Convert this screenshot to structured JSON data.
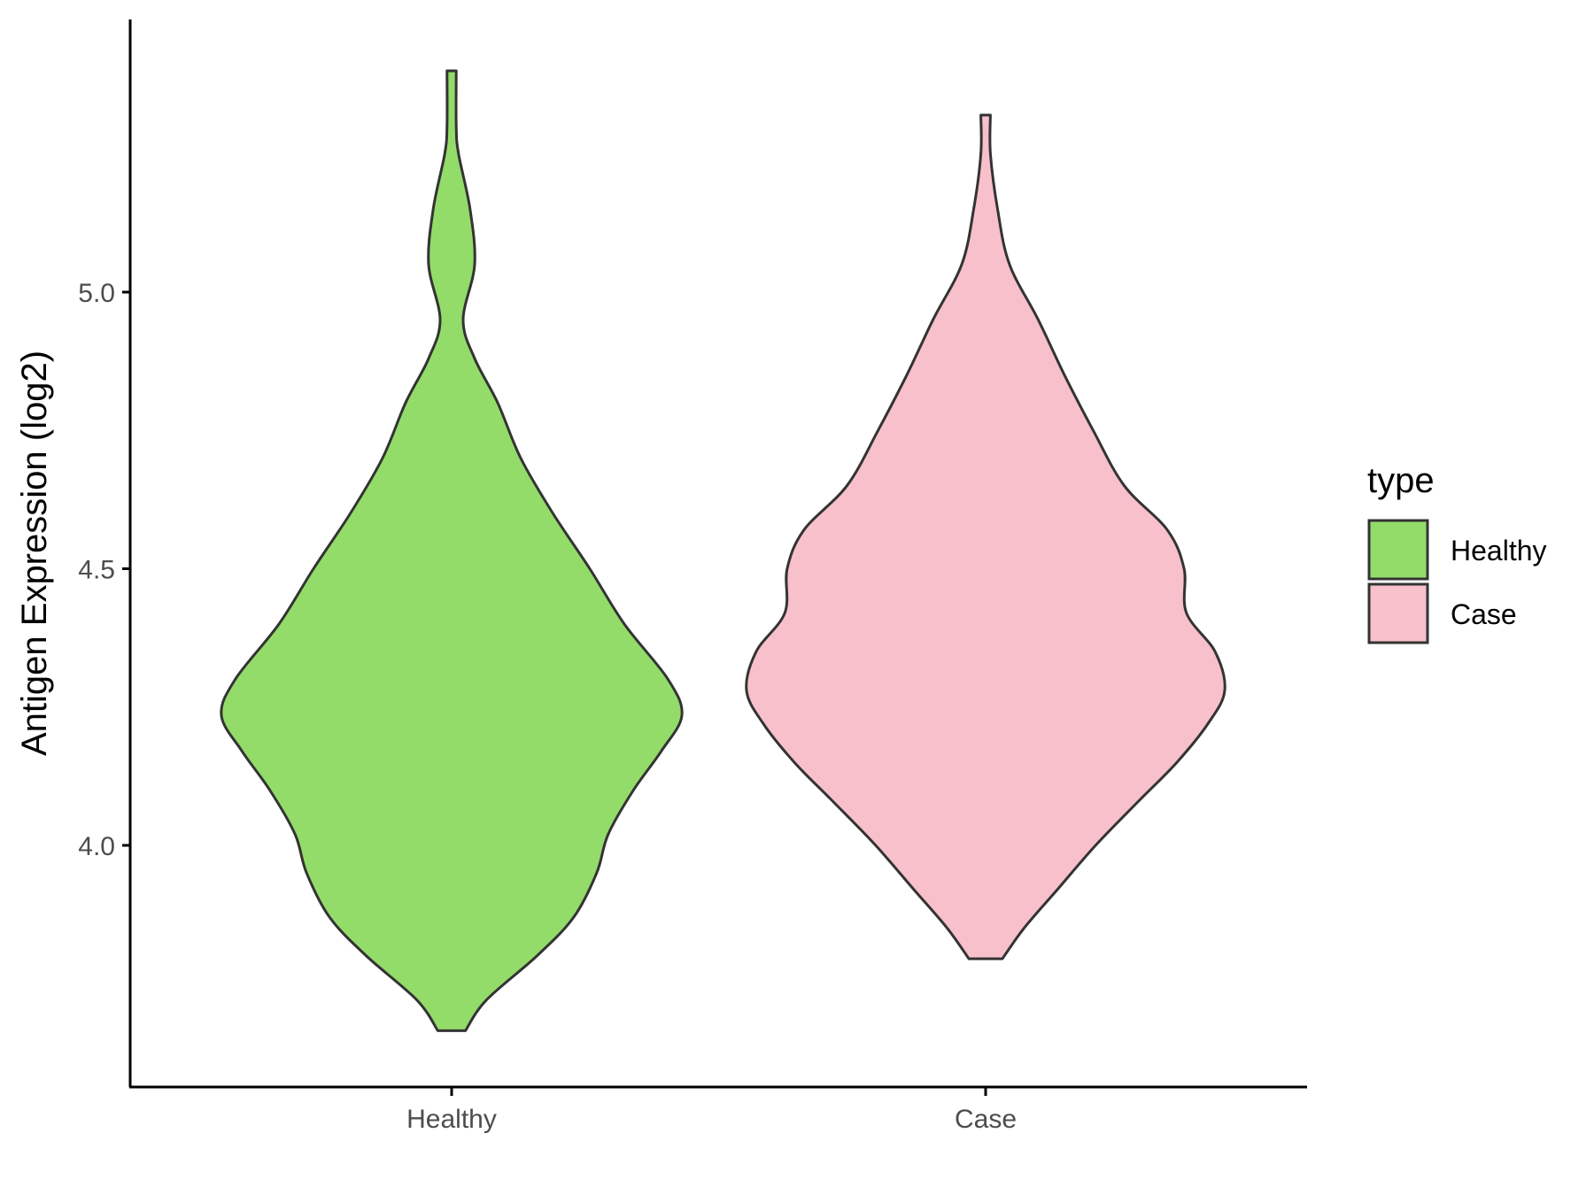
{
  "chart_data": {
    "type": "violin",
    "title": "",
    "xlabel": "",
    "ylabel": "Antigen Expression (log2)",
    "y_ticks": [
      "4.0",
      "4.5",
      "5.0"
    ],
    "ylim": [
      3.58,
      5.5
    ],
    "grid": false,
    "legend": {
      "title": "type",
      "position": "right",
      "items": [
        {
          "label": "Healthy",
          "color": "#93dc6a"
        },
        {
          "label": "Case",
          "color": "#f7c0cb"
        }
      ]
    },
    "categories": [
      "Healthy",
      "Case"
    ],
    "series": [
      {
        "name": "Healthy",
        "color": "#93dc6a",
        "min": 3.665,
        "max": 5.4,
        "density_profile": [
          [
            3.665,
            0.06
          ],
          [
            3.72,
            0.15
          ],
          [
            3.8,
            0.37
          ],
          [
            3.87,
            0.53
          ],
          [
            3.95,
            0.63
          ],
          [
            4.02,
            0.68
          ],
          [
            4.1,
            0.79
          ],
          [
            4.17,
            0.91
          ],
          [
            4.235,
            1.0
          ],
          [
            4.3,
            0.94
          ],
          [
            4.4,
            0.75
          ],
          [
            4.5,
            0.6
          ],
          [
            4.6,
            0.44
          ],
          [
            4.7,
            0.3
          ],
          [
            4.8,
            0.2
          ],
          [
            4.88,
            0.1
          ],
          [
            4.95,
            0.05
          ],
          [
            5.05,
            0.1
          ],
          [
            5.15,
            0.08
          ],
          [
            5.25,
            0.03
          ],
          [
            5.3,
            0.02
          ],
          [
            5.4,
            0.02
          ]
        ]
      },
      {
        "name": "Case",
        "color": "#f7c0cb",
        "min": 3.795,
        "max": 5.32,
        "density_profile": [
          [
            3.795,
            0.07
          ],
          [
            3.85,
            0.16
          ],
          [
            3.92,
            0.3
          ],
          [
            4.0,
            0.46
          ],
          [
            4.08,
            0.64
          ],
          [
            4.15,
            0.8
          ],
          [
            4.22,
            0.93
          ],
          [
            4.28,
            1.0
          ],
          [
            4.35,
            0.96
          ],
          [
            4.42,
            0.84
          ],
          [
            4.5,
            0.83
          ],
          [
            4.57,
            0.76
          ],
          [
            4.65,
            0.58
          ],
          [
            4.75,
            0.45
          ],
          [
            4.85,
            0.33
          ],
          [
            4.95,
            0.22
          ],
          [
            5.05,
            0.1
          ],
          [
            5.15,
            0.05
          ],
          [
            5.25,
            0.02
          ],
          [
            5.32,
            0.02
          ]
        ]
      }
    ]
  }
}
